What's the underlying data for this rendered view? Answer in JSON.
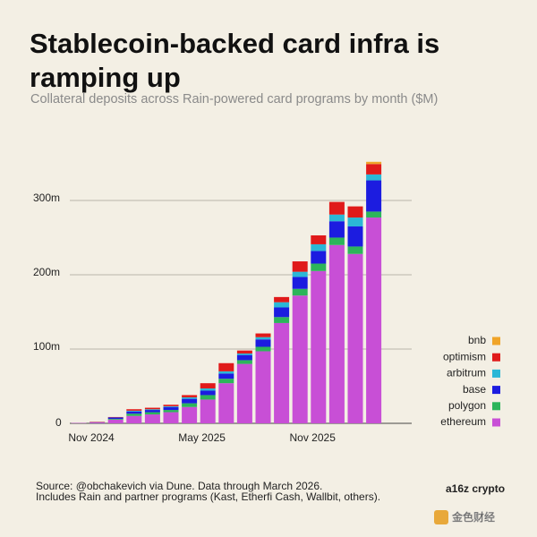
{
  "chart_data": {
    "type": "stacked_bar",
    "title": "Stablecoin-backed card infra is ramping up",
    "subtitle": "Collateral deposits across Rain-powered card programs by month ($M)",
    "categories": [
      "Nov 2024",
      null,
      null,
      null,
      null,
      null,
      "May 2025",
      null,
      null,
      null,
      null,
      null,
      "Nov 2025",
      null,
      null,
      null,
      null
    ],
    "series": [
      {
        "name": "ethereum",
        "color": "#c84fd6",
        "values": [
          0.5,
          1,
          5,
          10,
          12,
          15,
          22,
          32,
          54,
          80,
          97,
          135,
          172,
          205,
          240,
          228,
          277
        ]
      },
      {
        "name": "polygon",
        "color": "#2cb55a",
        "values": [
          0,
          0,
          1,
          3,
          3,
          3,
          5,
          6,
          6,
          5,
          6,
          8,
          9,
          10,
          10,
          10,
          8
        ]
      },
      {
        "name": "base",
        "color": "#1c1ce0",
        "values": [
          0,
          0.5,
          2,
          3,
          3,
          4,
          6,
          6,
          7,
          7,
          10,
          13,
          16,
          17,
          22,
          27,
          42
        ]
      },
      {
        "name": "arbitrum",
        "color": "#2bb7d6",
        "values": [
          0,
          0,
          0,
          1,
          1,
          1,
          2,
          3,
          3,
          2,
          3,
          7,
          7,
          9,
          9,
          12,
          8
        ]
      },
      {
        "name": "optimism",
        "color": "#e01a1a",
        "values": [
          0,
          0.5,
          0.5,
          2,
          2,
          2,
          3,
          7,
          11,
          4,
          5,
          7,
          14,
          12,
          17,
          15,
          14
        ]
      },
      {
        "name": "bnb",
        "color": "#f0a428",
        "values": [
          0,
          0,
          0,
          0,
          0,
          0,
          0,
          0,
          0,
          0,
          0,
          0,
          0,
          0,
          0,
          0,
          3
        ]
      }
    ],
    "ylim": [
      0,
      365
    ],
    "yticks": [
      0,
      {
        "value": 100,
        "label": "100m"
      },
      {
        "value": 200,
        "label": "200m"
      },
      {
        "value": 300,
        "label": "300m"
      }
    ],
    "grid": true,
    "legend": "bottom-right",
    "source": [
      "Source: @obchakevich via Dune. Data through March 2026.",
      "Includes Rain and partner programs (Kast, Etherfi Cash, Wallbit, others)."
    ],
    "logo": "a16z crypto",
    "watermark": "金色财经"
  }
}
